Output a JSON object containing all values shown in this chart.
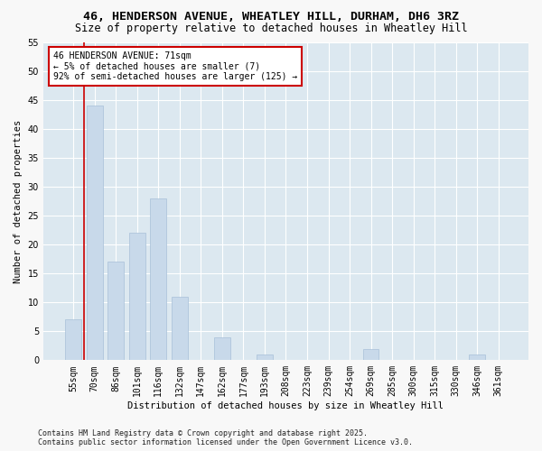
{
  "title1": "46, HENDERSON AVENUE, WHEATLEY HILL, DURHAM, DH6 3RZ",
  "title2": "Size of property relative to detached houses in Wheatley Hill",
  "xlabel": "Distribution of detached houses by size in Wheatley Hill",
  "ylabel": "Number of detached properties",
  "categories": [
    "55sqm",
    "70sqm",
    "86sqm",
    "101sqm",
    "116sqm",
    "132sqm",
    "147sqm",
    "162sqm",
    "177sqm",
    "193sqm",
    "208sqm",
    "223sqm",
    "239sqm",
    "254sqm",
    "269sqm",
    "285sqm",
    "300sqm",
    "315sqm",
    "330sqm",
    "346sqm",
    "361sqm"
  ],
  "values": [
    7,
    44,
    17,
    22,
    28,
    11,
    0,
    4,
    0,
    1,
    0,
    0,
    0,
    0,
    2,
    0,
    0,
    0,
    0,
    1,
    0
  ],
  "bar_color": "#c8d9ea",
  "bar_edge_color": "#a8c0d8",
  "bar_width": 0.75,
  "vline_x_idx": 1,
  "vline_color": "#cc0000",
  "annotation_line1": "46 HENDERSON AVENUE: 71sqm",
  "annotation_line2": "← 5% of detached houses are smaller (7)",
  "annotation_line3": "92% of semi-detached houses are larger (125) →",
  "annotation_box_color": "#cc0000",
  "annotation_box_fill": "#ffffff",
  "ylim_max": 55,
  "yticks": [
    0,
    5,
    10,
    15,
    20,
    25,
    30,
    35,
    40,
    45,
    50,
    55
  ],
  "background_color": "#dce8f0",
  "grid_color": "#ffffff",
  "footer": "Contains HM Land Registry data © Crown copyright and database right 2025.\nContains public sector information licensed under the Open Government Licence v3.0.",
  "title_fontsize": 9.5,
  "subtitle_fontsize": 8.5,
  "axis_label_fontsize": 7.5,
  "tick_fontsize": 7,
  "annotation_fontsize": 7,
  "footer_fontsize": 6
}
